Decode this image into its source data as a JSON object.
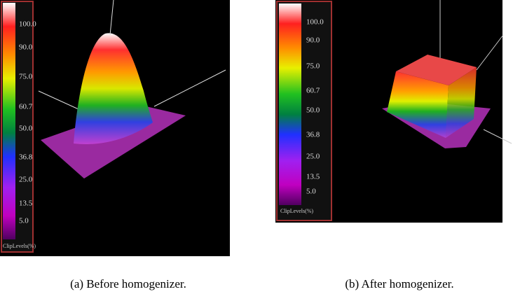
{
  "panels": [
    {
      "caption": "(a) Before homogenizer.",
      "colorbar": {
        "title": "ClipLevels(%)",
        "labels": [
          "100.0",
          "90.0",
          "75.0",
          "60.7",
          "50.0",
          "36.8",
          "25.0",
          "13.5",
          "5.0"
        ]
      }
    },
    {
      "caption": "(b)  After homogenizer.",
      "colorbar": {
        "title": "ClipLevels(%)",
        "labels": [
          "100.0",
          "90.0",
          "75.0",
          "60.7",
          "50.0",
          "36.8",
          "25.0",
          "13.5",
          "5.0"
        ]
      }
    }
  ]
}
